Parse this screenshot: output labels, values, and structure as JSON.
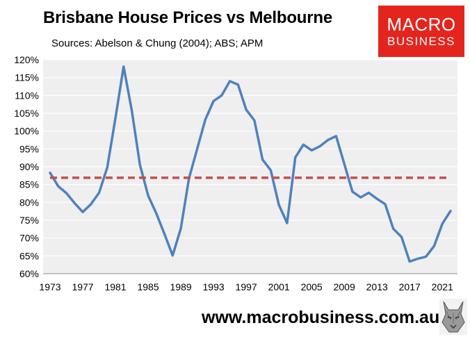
{
  "header": {
    "title": "Brisbane House Prices vs Melbourne",
    "subtitle": "Sources: Abelson & Chung (2004); ABS; APM"
  },
  "logo": {
    "line1": "MACRO",
    "line2": "BUSINESS",
    "bg_color": "#e3251e"
  },
  "footer": {
    "url": "www.macrobusiness.com.au"
  },
  "chart_data": {
    "type": "line",
    "title": "Brisbane House Prices vs Melbourne",
    "xlabel": "",
    "ylabel": "",
    "xlim": [
      1973,
      2022
    ],
    "ylim": [
      0.6,
      1.2
    ],
    "y_ticks": [
      0.6,
      0.65,
      0.7,
      0.75,
      0.8,
      0.85,
      0.9,
      0.95,
      1.0,
      1.05,
      1.1,
      1.15,
      1.2
    ],
    "y_tick_labels": [
      "60%",
      "65%",
      "70%",
      "75%",
      "80%",
      "85%",
      "90%",
      "95%",
      "100%",
      "105%",
      "110%",
      "115%",
      "120%"
    ],
    "x_ticks": [
      1973,
      1977,
      1981,
      1985,
      1989,
      1993,
      1997,
      2001,
      2005,
      2009,
      2013,
      2017,
      2021
    ],
    "x_tick_labels": [
      "1973",
      "1977",
      "1981",
      "1985",
      "1989",
      "1993",
      "1997",
      "2001",
      "2005",
      "2009",
      "2013",
      "2017",
      "2021"
    ],
    "grid": "horizontal",
    "plot_background": "#efefef",
    "series": [
      {
        "color": "#4f81bd",
        "x": [
          1973,
          1974,
          1975,
          1976,
          1977,
          1978,
          1979,
          1980,
          1981,
          1982,
          1983,
          1984,
          1985,
          1986,
          1987,
          1988,
          1989,
          1990,
          1991,
          1992,
          1993,
          1994,
          1995,
          1996,
          1997,
          1998,
          1999,
          2000,
          2001,
          2002,
          2003,
          2004,
          2005,
          2006,
          2007,
          2008,
          2009,
          2010,
          2011,
          2012,
          2013,
          2014,
          2015,
          2016,
          2017,
          2018,
          2019,
          2020,
          2021,
          2022
        ],
        "y": [
          0.883,
          0.845,
          0.826,
          0.798,
          0.773,
          0.795,
          0.827,
          0.898,
          1.036,
          1.181,
          1.057,
          0.905,
          0.819,
          0.769,
          0.711,
          0.651,
          0.727,
          0.867,
          0.95,
          1.032,
          1.084,
          1.1,
          1.14,
          1.13,
          1.06,
          1.03,
          0.92,
          0.89,
          0.793,
          0.742,
          0.926,
          0.962,
          0.946,
          0.957,
          0.975,
          0.986,
          0.908,
          0.83,
          0.814,
          0.827,
          0.81,
          0.795,
          0.726,
          0.703,
          0.634,
          0.642,
          0.648,
          0.678,
          0.74,
          0.776
        ]
      },
      {
        "color": "#c0504d",
        "dashed": true,
        "x": [
          1973,
          2022
        ],
        "y": [
          0.869,
          0.869
        ]
      }
    ]
  }
}
